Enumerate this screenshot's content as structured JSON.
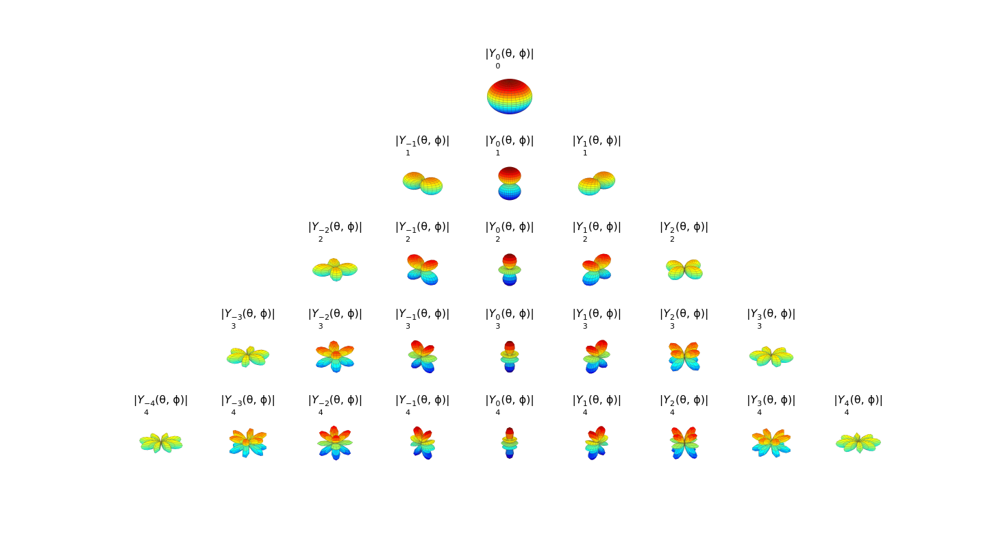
{
  "figure": {
    "rows": [
      {
        "l": 0,
        "cells": [
          {
            "m": "0",
            "title_sup": "0",
            "title_sub": "0"
          }
        ]
      },
      {
        "l": 1,
        "cells": [
          {
            "m": "-1",
            "title_sup": "−1",
            "title_sub": "1"
          },
          {
            "m": "0",
            "title_sup": "0",
            "title_sub": "1"
          },
          {
            "m": "1",
            "title_sup": "1",
            "title_sub": "1"
          }
        ]
      },
      {
        "l": 2,
        "cells": [
          {
            "m": "-2",
            "title_sup": "−2",
            "title_sub": "2"
          },
          {
            "m": "-1",
            "title_sup": "−1",
            "title_sub": "2"
          },
          {
            "m": "0",
            "title_sup": "0",
            "title_sub": "2"
          },
          {
            "m": "1",
            "title_sup": "1",
            "title_sub": "2"
          },
          {
            "m": "2",
            "title_sup": "2",
            "title_sub": "2"
          }
        ]
      },
      {
        "l": 3,
        "cells": [
          {
            "m": "-3",
            "title_sup": "−3",
            "title_sub": "3"
          },
          {
            "m": "-2",
            "title_sup": "−2",
            "title_sub": "3"
          },
          {
            "m": "-1",
            "title_sup": "−1",
            "title_sub": "3"
          },
          {
            "m": "0",
            "title_sup": "0",
            "title_sub": "3"
          },
          {
            "m": "1",
            "title_sup": "1",
            "title_sub": "3"
          },
          {
            "m": "2",
            "title_sup": "2",
            "title_sub": "3"
          },
          {
            "m": "3",
            "title_sup": "3",
            "title_sub": "3"
          }
        ]
      },
      {
        "l": 4,
        "cells": [
          {
            "m": "-4",
            "title_sup": "−4",
            "title_sub": "4"
          },
          {
            "m": "-3",
            "title_sup": "−3",
            "title_sub": "4"
          },
          {
            "m": "-2",
            "title_sup": "−2",
            "title_sub": "4"
          },
          {
            "m": "-1",
            "title_sup": "−1",
            "title_sub": "4"
          },
          {
            "m": "0",
            "title_sup": "0",
            "title_sub": "4"
          },
          {
            "m": "1",
            "title_sup": "1",
            "title_sub": "4"
          },
          {
            "m": "2",
            "title_sup": "2",
            "title_sub": "4"
          },
          {
            "m": "3",
            "title_sup": "3",
            "title_sub": "4"
          },
          {
            "m": "4",
            "title_sup": "4",
            "title_sub": "4"
          }
        ]
      }
    ],
    "title_prefix": "|",
    "title_symbol": "Y",
    "title_args": "(θ, ϕ)|",
    "colormap": [
      "#00007f",
      "#0000ff",
      "#007fff",
      "#00ffff",
      "#7fff7f",
      "#ffff00",
      "#ff7f00",
      "#ff0000",
      "#7f0000"
    ]
  }
}
